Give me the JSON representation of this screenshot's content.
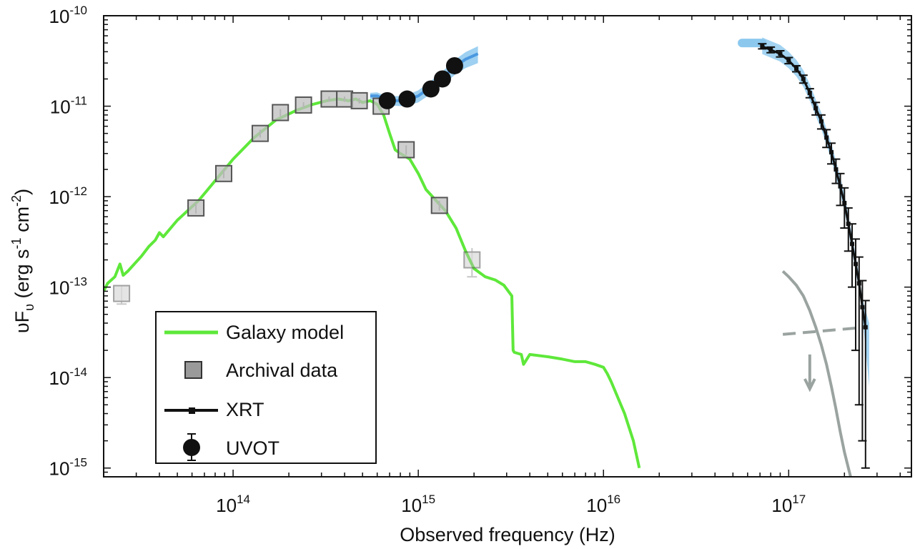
{
  "chart_data": {
    "type": "scatter",
    "xlabel": "Observed frequency (Hz)",
    "ylabel": "υF",
    "ylabel_sub": "υ",
    "ylabel_units": " (erg s",
    "ylabel_unit_exp1": "-1",
    "ylabel_units2": " cm",
    "ylabel_unit_exp2": "-2",
    "ylabel_units3": ")",
    "x_scale": "log",
    "y_scale": "log",
    "xlim": [
      20000000000000.0,
      4.6e+17
    ],
    "ylim": [
      8e-16,
      1e-10
    ],
    "x_ticks": [
      {
        "value": 100000000000000.0,
        "base": "10",
        "exp": "14"
      },
      {
        "value": 1000000000000000.0,
        "base": "10",
        "exp": "15"
      },
      {
        "value": 1e+16,
        "base": "10",
        "exp": "16"
      },
      {
        "value": 1e+17,
        "base": "10",
        "exp": "17"
      }
    ],
    "y_ticks": [
      {
        "value": 1e-10,
        "base": "10",
        "exp": "-10"
      },
      {
        "value": 1e-11,
        "base": "10",
        "exp": "-11"
      },
      {
        "value": 1e-12,
        "base": "10",
        "exp": "-12"
      },
      {
        "value": 1e-13,
        "base": "10",
        "exp": "-13"
      },
      {
        "value": 1e-14,
        "base": "10",
        "exp": "-14"
      },
      {
        "value": 1e-15,
        "base": "10",
        "exp": "-15"
      }
    ],
    "legend_position": "bottom-left",
    "series": [
      {
        "name": "Galaxy model",
        "kind": "line",
        "color": "#5ee83a",
        "x": [
          20000000000000.0,
          21000000000000.0,
          23000000000000.0,
          24500000000000.0,
          25500000000000.0,
          27000000000000.0,
          32000000000000.0,
          35000000000000.0,
          38000000000000.0,
          40000000000000.0,
          42000000000000.0,
          50000000000000.0,
          65000000000000.0,
          80000000000000.0,
          100000000000000.0,
          130000000000000.0,
          170000000000000.0,
          220000000000000.0,
          270000000000000.0,
          320000000000000.0,
          370000000000000.0,
          420000000000000.0,
          460000000000000.0,
          500000000000000.0,
          550000000000000.0,
          600000000000000.0,
          650000000000000.0,
          700000000000000.0,
          750000000000000.0,
          800000000000000.0,
          900000000000000.0,
          1000000000000000.0,
          1100000000000000.0,
          1250000000000000.0,
          1400000000000000.0,
          1600000000000000.0,
          1800000000000000.0,
          2000000000000000.0,
          2300000000000000.0,
          2600000000000000.0,
          2900000000000000.0,
          3200000000000000.0,
          3250000000000000.0,
          3300000000000000.0,
          3600000000000000.0,
          3700000000000000.0,
          4000000000000000.0,
          5000000000000000.0,
          6000000000000000.0,
          7000000000000000.0,
          8000000000000000.0,
          9000000000000000.0,
          1e+16,
          1.05e+16,
          1.1e+16,
          1.3e+16,
          1.45e+16,
          1.56e+16
        ],
        "y": [
          9e-14,
          1.1e-13,
          1.3e-13,
          1.8e-13,
          1.35e-13,
          1.5e-13,
          2.2e-13,
          2.8e-13,
          3.3e-13,
          4e-13,
          3.6e-13,
          5.5e-13,
          9e-13,
          1.5e-12,
          2.6e-12,
          4.5e-12,
          7e-12,
          9e-12,
          1.05e-11,
          1.15e-11,
          1.2e-11,
          1.15e-11,
          1.2e-11,
          1.1e-11,
          1.15e-11,
          1.05e-11,
          8e-12,
          5e-12,
          3.3e-12,
          3e-12,
          2.6e-12,
          1.8e-12,
          1.2e-12,
          9e-13,
          7e-13,
          4.5e-13,
          2.5e-13,
          1.6e-13,
          1.3e-13,
          1.2e-13,
          1.05e-13,
          8e-14,
          2e-14,
          1.9e-14,
          1.8e-14,
          1.4e-14,
          1.8e-14,
          1.7e-14,
          1.6e-14,
          1.5e-14,
          1.5e-14,
          1.4e-14,
          1.3e-14,
          1.1e-14,
          9e-15,
          4e-15,
          2e-15,
          1e-15
        ]
      },
      {
        "name": "Archival data",
        "kind": "markers",
        "color": "#9a9a9a",
        "x": [
          25000000000000.0,
          63000000000000.0,
          89000000000000.0,
          140000000000000.0,
          180000000000000.0,
          240000000000000.0,
          330000000000000.0,
          400000000000000.0,
          480000000000000.0,
          630000000000000.0,
          860000000000000.0,
          1300000000000000.0,
          1950000000000000.0
        ],
        "y": [
          8.5e-14,
          7.5e-13,
          1.8e-12,
          5e-12,
          8.5e-12,
          1.03e-11,
          1.2e-11,
          1.2e-11,
          1.15e-11,
          1e-11,
          3.3e-12,
          8e-13,
          2e-13
        ],
        "y_err": [
          2e-14,
          1e-13,
          2e-13,
          5e-13,
          8e-13,
          8e-13,
          8e-13,
          8e-13,
          8e-13,
          8e-13,
          4e-13,
          1e-13,
          7e-14
        ],
        "faded": [
          true,
          false,
          false,
          false,
          false,
          false,
          false,
          false,
          false,
          false,
          false,
          false,
          true
        ]
      },
      {
        "name": "XRT",
        "kind": "line",
        "color": "#111111",
        "x": [
          7.2e+16,
          8e+16,
          9e+16,
          1e+17,
          1.1e+17,
          1.2e+17,
          1.3e+17,
          1.4e+17,
          1.5e+17,
          1.6e+17,
          1.7e+17,
          1.8e+17,
          1.9e+17,
          2e+17,
          2.1e+17,
          2.2e+17,
          2.3e+17,
          2.4e+17,
          2.5e+17,
          2.6e+17
        ],
        "y": [
          4.6e-11,
          4.2e-11,
          3.8e-11,
          3.2e-11,
          2.6e-11,
          2e-11,
          1.4e-11,
          9.5e-12,
          6.8e-12,
          4.5e-12,
          3.1e-12,
          2e-12,
          1.3e-12,
          8.5e-13,
          5e-13,
          3e-13,
          1.8e-13,
          1.1e-13,
          6e-14,
          3.6e-14
        ],
        "y_err": [
          3e-12,
          3e-12,
          3e-12,
          2.5e-12,
          2e-12,
          2e-12,
          1.6e-12,
          1.5e-12,
          1.2e-12,
          1e-12,
          8e-13,
          6e-13,
          5e-13,
          4e-13,
          2.5e-13,
          2e-13,
          1.6e-13,
          1.05e-13,
          5.8e-14,
          3.5e-14
        ],
        "band_color": "#8cc8ee"
      },
      {
        "name": "UVOT",
        "kind": "markers",
        "color": "#111111",
        "x": [
          680000000000000.0,
          870000000000000.0,
          1170000000000000.0,
          1350000000000000.0,
          1570000000000000.0
        ],
        "y": [
          1.15e-11,
          1.2e-11,
          1.55e-11,
          2e-11,
          2.8e-11
        ],
        "model_line": {
          "color": "#4a98e0",
          "band_color": "#8cc8ee",
          "x": [
            550000000000000.0,
            600000000000000.0,
            650000000000000.0,
            700000000000000.0,
            800000000000000.0,
            900000000000000.0,
            1000000000000000.0,
            1200000000000000.0,
            1400000000000000.0,
            1600000000000000.0,
            1800000000000000.0,
            2100000000000000.0
          ],
          "y": [
            1.3e-11,
            1.3e-11,
            1.2e-11,
            1.15e-11,
            1.15e-11,
            1.2e-11,
            1.3e-11,
            1.7e-11,
            2.2e-11,
            2.8e-11,
            3.3e-11,
            3.8e-11
          ]
        }
      }
    ],
    "extra_curves": [
      {
        "kind": "solid",
        "color": "#9aa3a0",
        "x": [
          9.3e+16,
          1e+17,
          1.1e+17,
          1.2e+17,
          1.3e+17,
          1.4e+17,
          1.5e+17,
          1.6e+17,
          1.7e+17,
          1.8e+17,
          1.9e+17,
          2e+17,
          2.1e+17,
          2.16e+17
        ],
        "y": [
          1.5e-13,
          1.3e-13,
          1.05e-13,
          8e-14,
          5.5e-14,
          3.6e-14,
          2.3e-14,
          1.4e-14,
          8e-15,
          4.5e-15,
          2.5e-15,
          1.5e-15,
          1e-15,
          8e-16
        ]
      },
      {
        "kind": "dashed",
        "color": "#9aa3a0",
        "x": [
          9.3e+16,
          2.6e+17
        ],
        "y": [
          3e-14,
          3.6e-14
        ]
      }
    ],
    "upper_limit": {
      "color": "#9aa3a0",
      "x": 1.3e+17,
      "y_from": 1.8e-14,
      "y_to": 7.5e-15
    }
  }
}
